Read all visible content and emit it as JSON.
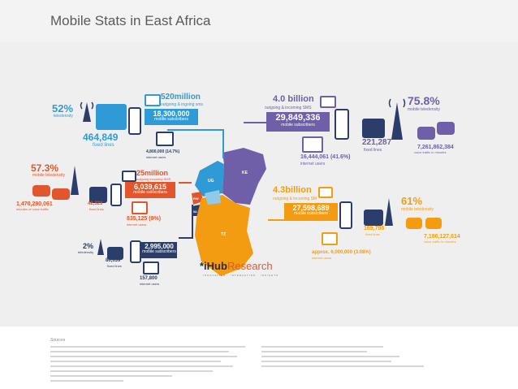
{
  "title": "Mobile Stats in East Africa",
  "uganda": {
    "teledensity_pct": "52%",
    "teledensity_label": "teledensity",
    "fixed_lines": "464,849",
    "fixed_lines_label": "fixed lines",
    "sms": "520million",
    "sms_label": "outgoing & ingoing sms",
    "subscribers": "18,300,000",
    "subscribers_label": "mobile subscribers",
    "internet": "4,800,000 (14.7%)",
    "internet_label": "internet users",
    "code": "UG"
  },
  "kenya": {
    "sms": "4.0 billion",
    "sms_label": "outgoing & incoming SMS",
    "subscribers": "29,849,336",
    "subscribers_label": "mobile subscribers",
    "internet": "16,444,061 (41.6%)",
    "internet_label": "internet users",
    "fixed_lines": "221,287",
    "fixed_lines_label": "fixed lines",
    "teledensity_pct": "75.8%",
    "teledensity_label": "mobile teledensity",
    "voice": "7,261,862,384",
    "voice_label": "voice traffic in minutes",
    "code": "KE"
  },
  "rwanda": {
    "teledensity_pct": "57.3%",
    "teledensity_label": "mobile teledensity",
    "voice": "1,470,290,061",
    "voice_label": "minutes of voice traffic",
    "fixed_lines": "42,323",
    "fixed_lines_label": "fixed lines",
    "sms": "25million",
    "sms_label": "outgoing incoming SMS",
    "subscribers": "6,039,615",
    "subscribers_label": "mobile subscribers",
    "internet": "835,125 (9%)",
    "internet_label": "internet users",
    "code": "RW"
  },
  "burundi": {
    "teledensity_pct": "2%",
    "teledensity_label": "teledensity",
    "fixed_lines": "80,039",
    "fixed_lines_label": "fixed lines",
    "subscribers": "2,995,000",
    "subscribers_label": "mobile subscribers",
    "internet": "157,800",
    "internet_label": "internet users",
    "code": "BU"
  },
  "tanzania": {
    "sms": "4.3billion",
    "sms_label": "outgoing & incoming SM",
    "subscribers": "27,598,689",
    "subscribers_label": "mobile subscribers",
    "fixed_lines": "169,786",
    "fixed_lines_label": "fixed lines",
    "teledensity_pct": "61%",
    "teledensity_label": "mobile teledensity",
    "voice": "7,186,127,614",
    "voice_label": "voice traffic in minutes",
    "internet": "approx. 6,000,000 (3.08%)",
    "internet_label": "internet users",
    "code": "TZ"
  },
  "logo": {
    "prefix": "*i",
    "hub": "Hub",
    "research": "Research",
    "tagline": "INNOVATION · INTERACTION · INSIGHTS"
  },
  "colors": {
    "uganda": "#2f9bd6",
    "kenya": "#6f5fa8",
    "rwanda": "#e2562d",
    "burundi": "#2b3e6b",
    "tanzania": "#f39c12",
    "icons": "#2b3e6b"
  },
  "footer": {
    "sources_label": "Sources"
  }
}
